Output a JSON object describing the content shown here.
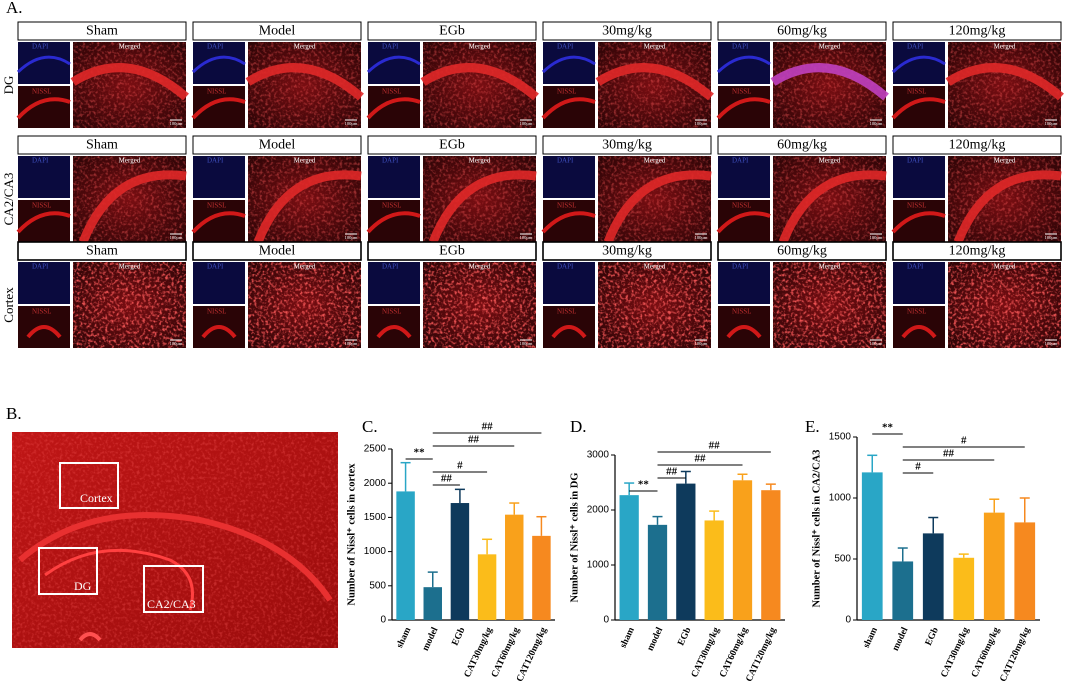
{
  "panel_a": {
    "label": "A.",
    "regions": [
      "DG",
      "CA2/CA3",
      "Cortex"
    ],
    "groups": [
      "Sham",
      "Model",
      "EGb",
      "30mg/kg",
      "60mg/kg",
      "120mg/kg"
    ],
    "stains": {
      "dapi": "DAPI",
      "nissl": "NISSL",
      "merged": "Merged"
    },
    "scale_bar": "100μm"
  },
  "panel_b": {
    "label": "B.",
    "regions": [
      "Cortex",
      "DG",
      "CA2/CA3"
    ]
  },
  "chart_data": [
    {
      "type": "bar",
      "label": "C.",
      "y_label": "Number of Nissl⁺ cells in cortex",
      "categories": [
        "sham",
        "model",
        "EGb",
        "CAT30mg/kg",
        "CAT60mg/kg",
        "CAT120mg/kg"
      ],
      "values": [
        1880,
        480,
        1710,
        960,
        1540,
        1230
      ],
      "errors": [
        420,
        220,
        200,
        220,
        170,
        280
      ],
      "colors": [
        "#29a6c6",
        "#1c6f8e",
        "#0e3a5c",
        "#fbbc1a",
        "#f9a11b",
        "#f6891f"
      ],
      "ylim": [
        0,
        2500
      ],
      "yticks": [
        0,
        500,
        1000,
        1500,
        2000,
        2500
      ],
      "annotations": [
        {
          "text": "##",
          "between": [
            "model",
            "EGb"
          ]
        },
        {
          "text": "#",
          "between": [
            "model",
            "CAT30mg/kg"
          ]
        },
        {
          "text": "**",
          "between": [
            "sham",
            "model"
          ]
        },
        {
          "text": "##",
          "between": [
            "model",
            "CAT60mg/kg"
          ]
        },
        {
          "text": "##",
          "between": [
            "model",
            "CAT120mg/kg"
          ]
        }
      ]
    },
    {
      "type": "bar",
      "label": "D.",
      "y_label": "Number of Nissl⁺ cells in DG",
      "categories": [
        "sham",
        "model",
        "EGb",
        "CAT30mg/kg",
        "CAT60mg/kg",
        "CAT120mg/kg"
      ],
      "values": [
        2270,
        1730,
        2480,
        1810,
        2540,
        2360
      ],
      "errors": [
        220,
        150,
        220,
        170,
        110,
        110
      ],
      "colors": [
        "#29a6c6",
        "#1c6f8e",
        "#0e3a5c",
        "#fbbc1a",
        "#f9a11b",
        "#f6891f"
      ],
      "ylim": [
        0,
        3000
      ],
      "yticks": [
        0,
        1000,
        2000,
        3000
      ],
      "annotations": [
        {
          "text": "**",
          "between": [
            "sham",
            "model"
          ]
        },
        {
          "text": "##",
          "between": [
            "model",
            "EGb"
          ]
        },
        {
          "text": "##",
          "between": [
            "model",
            "CAT60mg/kg"
          ]
        },
        {
          "text": "##",
          "between": [
            "model",
            "CAT120mg/kg"
          ]
        }
      ]
    },
    {
      "type": "bar",
      "label": "E.",
      "y_label": "Number of Nissl⁺ cells in CA2/CA3",
      "categories": [
        "sham",
        "model",
        "EGb",
        "CAT30mg/kg",
        "CAT60mg/kg",
        "CAT120mg/kg"
      ],
      "values": [
        1210,
        480,
        710,
        510,
        880,
        800
      ],
      "errors": [
        140,
        110,
        130,
        30,
        110,
        200
      ],
      "colors": [
        "#29a6c6",
        "#1c6f8e",
        "#0e3a5c",
        "#fbbc1a",
        "#f9a11b",
        "#f6891f"
      ],
      "ylim": [
        0,
        1500
      ],
      "yticks": [
        0,
        500,
        1000,
        1500
      ],
      "annotations": [
        {
          "text": "#",
          "between": [
            "model",
            "EGb"
          ]
        },
        {
          "text": "##",
          "between": [
            "model",
            "CAT60mg/kg"
          ]
        },
        {
          "text": "#",
          "between": [
            "model",
            "CAT120mg/kg"
          ]
        },
        {
          "text": "**",
          "between": [
            "sham",
            "model"
          ]
        }
      ]
    }
  ]
}
